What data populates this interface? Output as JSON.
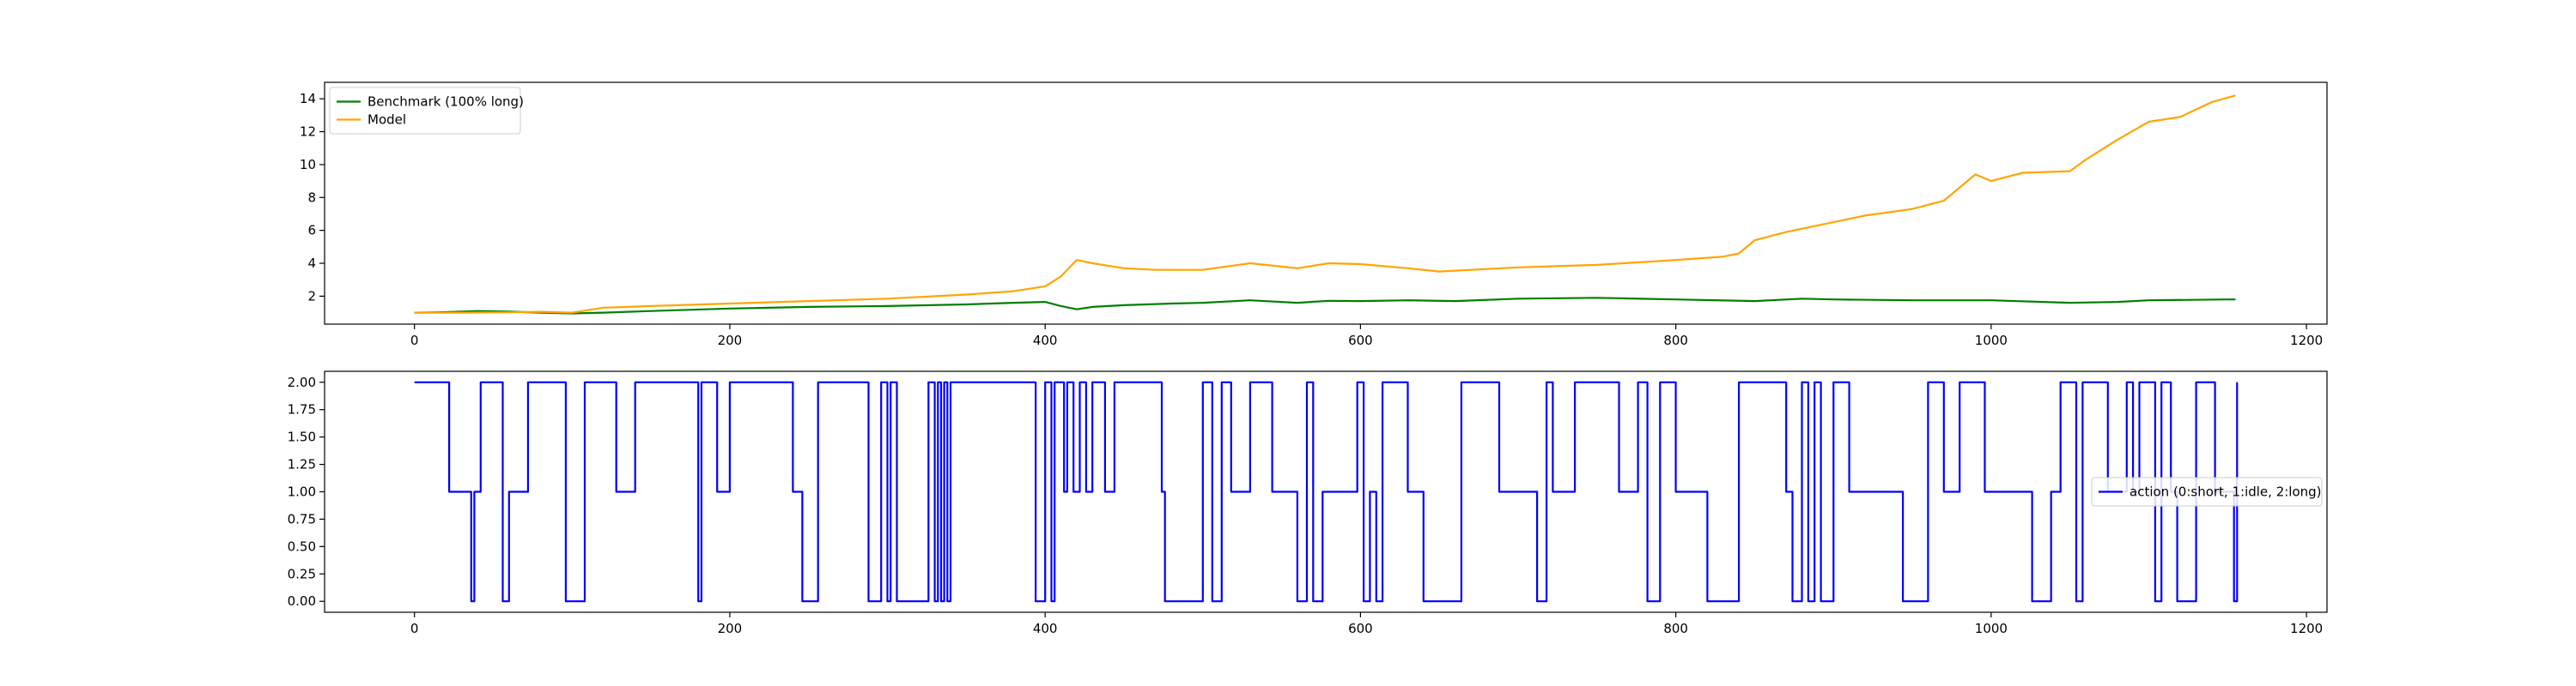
{
  "chart_data": [
    {
      "type": "line",
      "title": "",
      "xlabel": "",
      "ylabel": "",
      "xlim": [
        -57,
        1213
      ],
      "ylim": [
        0.3,
        15.0
      ],
      "xticks": [
        0,
        200,
        400,
        600,
        800,
        1000,
        1200
      ],
      "yticks": [
        2,
        4,
        6,
        8,
        10,
        12,
        14
      ],
      "ytick_labels": [
        "2",
        "4",
        "6",
        "8",
        "10",
        "12",
        "14"
      ],
      "grid": false,
      "legend": {
        "position": "top-left"
      },
      "series": [
        {
          "name": "Benchmark (100% long)",
          "color": "#008000",
          "x": [
            0,
            20,
            40,
            60,
            80,
            100,
            120,
            150,
            200,
            250,
            300,
            350,
            380,
            400,
            410,
            420,
            430,
            450,
            480,
            500,
            530,
            560,
            580,
            600,
            630,
            660,
            700,
            750,
            800,
            850,
            880,
            900,
            950,
            1000,
            1050,
            1080,
            1100,
            1150,
            1155
          ],
          "y": [
            1.0,
            1.03,
            1.1,
            1.06,
            1.0,
            0.95,
            1.0,
            1.1,
            1.25,
            1.35,
            1.4,
            1.5,
            1.6,
            1.65,
            1.4,
            1.2,
            1.35,
            1.45,
            1.55,
            1.6,
            1.75,
            1.6,
            1.72,
            1.7,
            1.75,
            1.7,
            1.85,
            1.9,
            1.8,
            1.7,
            1.85,
            1.8,
            1.75,
            1.75,
            1.6,
            1.65,
            1.75,
            1.8,
            1.8
          ]
        },
        {
          "name": "Model",
          "color": "#FFA500",
          "x": [
            0,
            30,
            60,
            80,
            100,
            120,
            150,
            200,
            250,
            300,
            350,
            380,
            400,
            410,
            420,
            430,
            450,
            470,
            500,
            530,
            560,
            580,
            600,
            630,
            650,
            700,
            750,
            800,
            830,
            840,
            850,
            870,
            900,
            920,
            950,
            970,
            990,
            1000,
            1020,
            1050,
            1060,
            1080,
            1100,
            1120,
            1140,
            1155
          ],
          "y": [
            1.0,
            1.0,
            1.02,
            1.05,
            1.0,
            1.3,
            1.4,
            1.55,
            1.7,
            1.85,
            2.1,
            2.3,
            2.6,
            3.2,
            4.2,
            4.0,
            3.7,
            3.6,
            3.6,
            4.0,
            3.7,
            4.0,
            3.95,
            3.7,
            3.5,
            3.75,
            3.9,
            4.2,
            4.4,
            4.6,
            5.4,
            5.9,
            6.5,
            6.9,
            7.3,
            7.8,
            9.4,
            9.0,
            9.5,
            9.6,
            10.3,
            11.5,
            12.6,
            12.9,
            13.8,
            14.2
          ]
        }
      ]
    },
    {
      "type": "line",
      "title": "",
      "xlabel": "",
      "ylabel": "",
      "xlim": [
        -57,
        1213
      ],
      "ylim": [
        -0.1,
        2.1
      ],
      "xticks": [
        0,
        200,
        400,
        600,
        800,
        1000,
        1200
      ],
      "yticks": [
        0.0,
        0.25,
        0.5,
        0.75,
        1.0,
        1.25,
        1.5,
        1.75,
        2.0
      ],
      "ytick_labels": [
        "0.00",
        "0.25",
        "0.50",
        "0.75",
        "1.00",
        "1.25",
        "1.50",
        "1.75",
        "2.00"
      ],
      "grid": false,
      "legend": {
        "position": "center-right"
      },
      "series": [
        {
          "name": "action (0:short, 1:idle, 2:long)",
          "color": "#0000FF",
          "step": true,
          "x": [
            0,
            22,
            36,
            38,
            42,
            56,
            60,
            72,
            96,
            108,
            128,
            140,
            150,
            180,
            182,
            192,
            200,
            240,
            246,
            256,
            260,
            288,
            296,
            300,
            302,
            304,
            306,
            318,
            326,
            330,
            332,
            334,
            336,
            338,
            340,
            346,
            352,
            394,
            400,
            404,
            406,
            412,
            414,
            418,
            422,
            424,
            426,
            430,
            438,
            444,
            448,
            472,
            474,
            476,
            500,
            502,
            506,
            512,
            518,
            530,
            544,
            560,
            566,
            570,
            576,
            580,
            598,
            602,
            606,
            610,
            614,
            630,
            640,
            664,
            688,
            712,
            718,
            722,
            736,
            744,
            760,
            764,
            776,
            782,
            790,
            800,
            820,
            840,
            870,
            874,
            880,
            884,
            888,
            892,
            900,
            910,
            944,
            960,
            970,
            980,
            996,
            1020,
            1026,
            1038,
            1044,
            1054,
            1058,
            1074,
            1086,
            1090,
            1094,
            1098,
            1100,
            1104,
            1108,
            1114,
            1118,
            1130,
            1142,
            1154,
            1156
          ],
          "y": [
            2,
            1,
            0,
            1,
            2,
            0,
            1,
            2,
            0,
            2,
            1,
            2,
            2,
            0,
            2,
            1,
            2,
            1,
            0,
            2,
            2,
            0,
            2,
            0,
            2,
            2,
            0,
            0,
            2,
            0,
            2,
            0,
            2,
            0,
            2,
            2,
            2,
            0,
            2,
            0,
            2,
            1,
            2,
            1,
            2,
            2,
            1,
            2,
            1,
            2,
            2,
            2,
            1,
            0,
            2,
            2,
            0,
            2,
            1,
            2,
            1,
            0,
            2,
            0,
            1,
            1,
            2,
            0,
            1,
            0,
            2,
            1,
            0,
            2,
            1,
            0,
            2,
            1,
            2,
            2,
            2,
            1,
            2,
            0,
            2,
            1,
            0,
            2,
            1,
            0,
            2,
            0,
            2,
            0,
            2,
            1,
            0,
            2,
            1,
            2,
            1,
            1,
            0,
            1,
            2,
            0,
            2,
            1,
            2,
            1,
            2,
            2,
            2,
            0,
            2,
            1,
            0,
            2,
            1,
            0,
            2
          ]
        }
      ]
    }
  ]
}
